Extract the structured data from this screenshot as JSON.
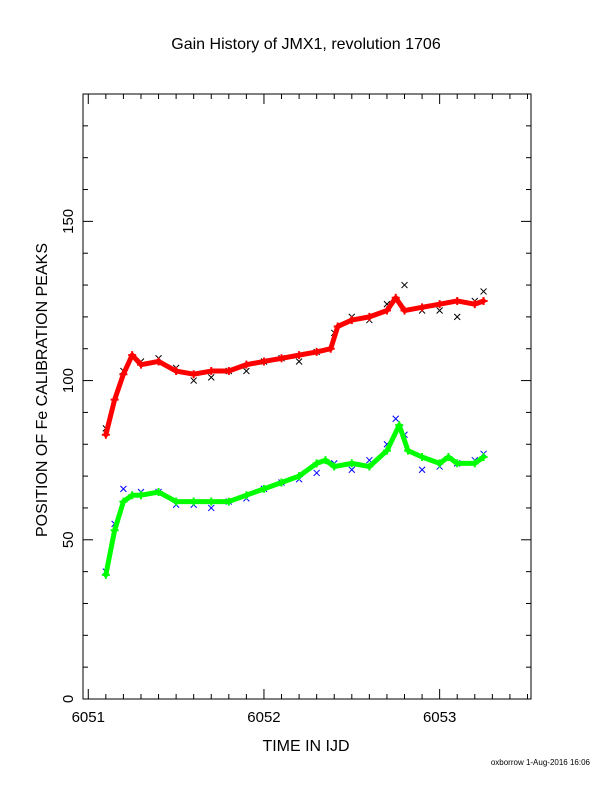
{
  "chart_data": {
    "type": "scatter",
    "title": "Gain History of JMX1, revolution 1706",
    "xlabel": "TIME IN IJD",
    "ylabel": "POSITION OF Fe CALIBRATION PEAKS",
    "xlim": [
      6050.97,
      6053.52
    ],
    "ylim": [
      0,
      190
    ],
    "x_ticks": [
      "6051",
      "6052",
      "6053"
    ],
    "y_ticks": [
      "0",
      "50",
      "100",
      "150"
    ],
    "grid": false,
    "series": [
      {
        "color": "#000000",
        "marker": "x",
        "x": [
          6051.1,
          6051.2,
          6051.3,
          6051.4,
          6051.5,
          6051.6,
          6051.7,
          6051.8,
          6051.9,
          6052.0,
          6052.1,
          6052.2,
          6052.3,
          6052.4,
          6052.5,
          6052.6,
          6052.7,
          6052.8,
          6052.9,
          6053.0,
          6053.1,
          6053.2,
          6053.25
        ],
        "y": [
          85,
          103,
          106,
          107,
          104,
          100,
          101,
          103,
          103,
          106,
          107,
          106,
          109,
          115,
          120,
          119,
          124,
          130,
          122,
          122,
          120,
          125,
          128
        ]
      },
      {
        "color": "#ff0000",
        "marker": "+",
        "x": [
          6051.1,
          6051.15,
          6051.2,
          6051.25,
          6051.3,
          6051.4,
          6051.5,
          6051.6,
          6051.7,
          6051.8,
          6051.9,
          6052.0,
          6052.1,
          6052.2,
          6052.3,
          6052.38,
          6052.42,
          6052.5,
          6052.6,
          6052.7,
          6052.75,
          6052.8,
          6052.9,
          6053.0,
          6053.1,
          6053.2,
          6053.25
        ],
        "y": [
          83,
          94,
          102,
          108,
          105,
          106,
          103,
          102,
          103,
          103,
          105,
          106,
          107,
          108,
          109,
          110,
          117,
          119,
          120,
          122,
          126,
          122,
          123,
          124,
          125,
          124,
          125
        ]
      },
      {
        "color": "#0000ff",
        "marker": "x",
        "x": [
          6051.1,
          6051.15,
          6051.2,
          6051.3,
          6051.4,
          6051.5,
          6051.6,
          6051.7,
          6051.8,
          6051.9,
          6052.0,
          6052.1,
          6052.2,
          6052.3,
          6052.4,
          6052.5,
          6052.6,
          6052.7,
          6052.75,
          6052.8,
          6052.9,
          6053.0,
          6053.1,
          6053.2,
          6053.25
        ],
        "y": [
          40,
          55,
          66,
          65,
          65,
          61,
          61,
          60,
          62,
          63,
          66,
          68,
          69,
          71,
          74,
          72,
          75,
          80,
          88,
          83,
          72,
          73,
          74,
          75,
          77
        ]
      },
      {
        "color": "#00ff00",
        "marker": "+",
        "x": [
          6051.1,
          6051.15,
          6051.2,
          6051.25,
          6051.3,
          6051.4,
          6051.5,
          6051.6,
          6051.7,
          6051.8,
          6051.9,
          6052.0,
          6052.1,
          6052.2,
          6052.3,
          6052.35,
          6052.4,
          6052.5,
          6052.6,
          6052.7,
          6052.77,
          6052.82,
          6052.9,
          6053.0,
          6053.05,
          6053.1,
          6053.2,
          6053.25
        ],
        "y": [
          39,
          53,
          62,
          64,
          64,
          65,
          62,
          62,
          62,
          62,
          64,
          66,
          68,
          70,
          74,
          75,
          73,
          74,
          73,
          78,
          86,
          78,
          76,
          74,
          76,
          74,
          74,
          76
        ]
      }
    ]
  },
  "footer": "oxborrow 1-Aug-2016 16:06"
}
